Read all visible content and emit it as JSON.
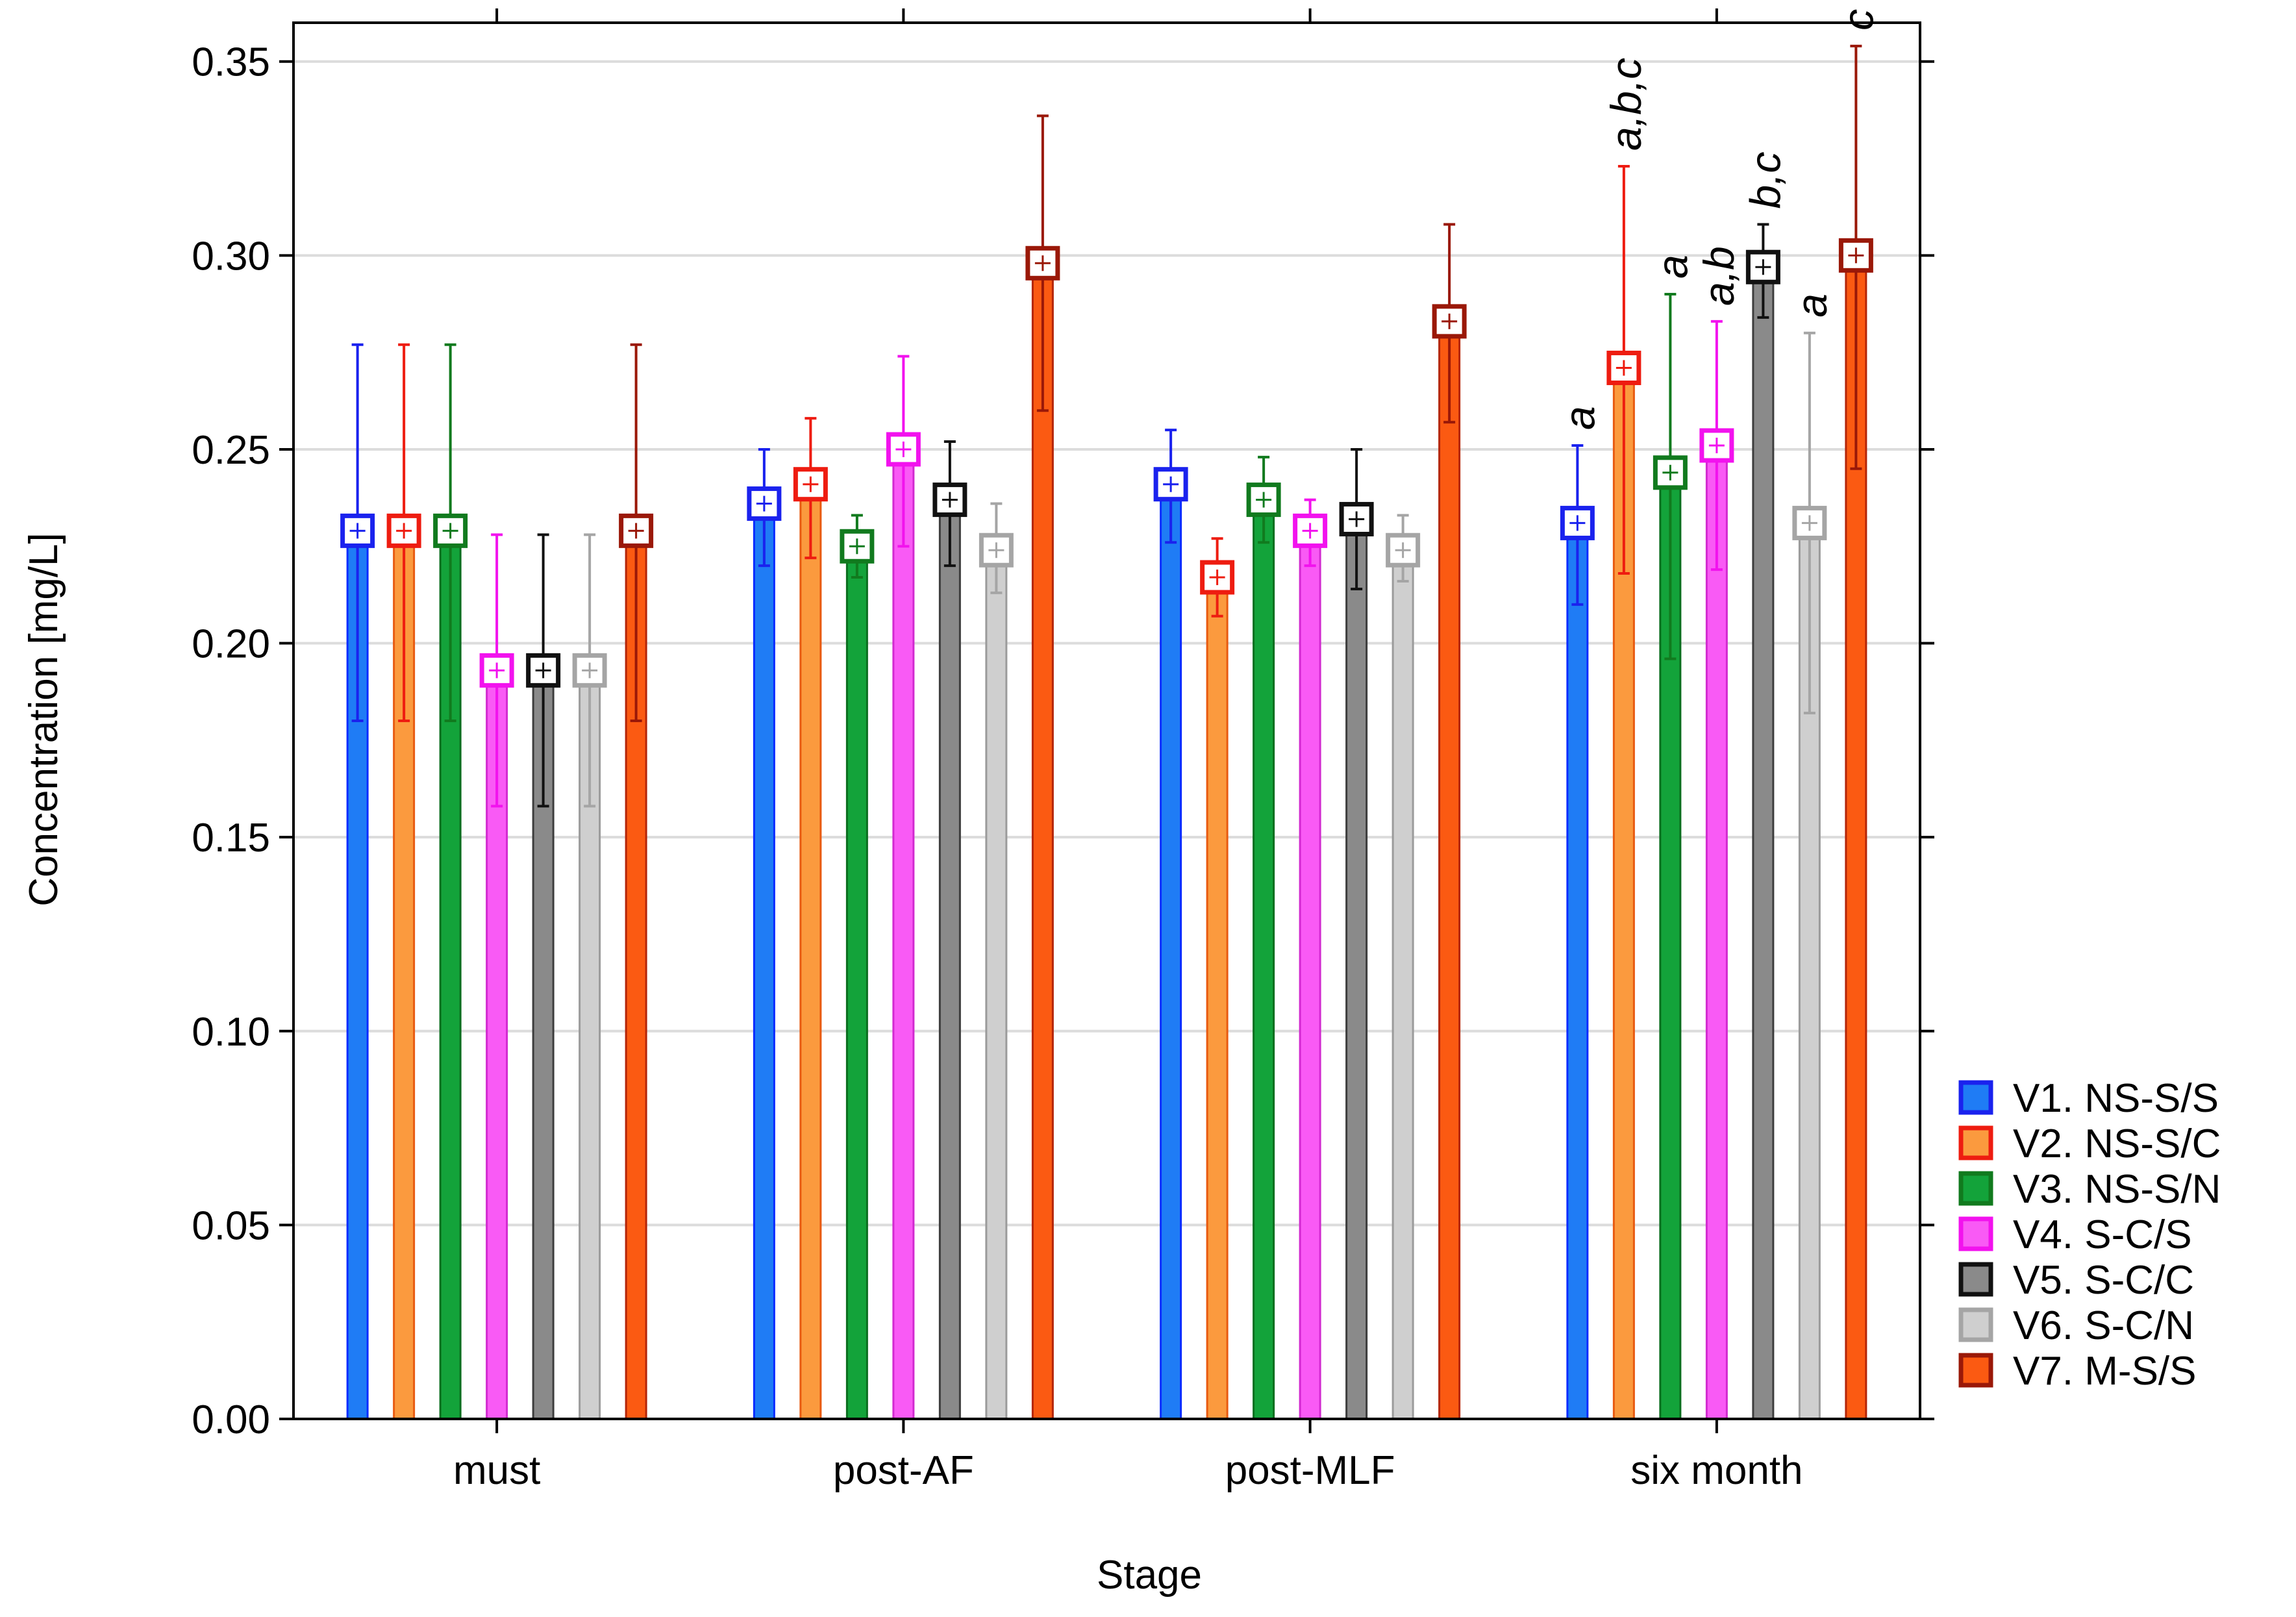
{
  "chart_data": {
    "type": "bar",
    "title": "",
    "xlabel": "Stage",
    "ylabel": "Concentration [mg/L]",
    "ylim": [
      0,
      0.36
    ],
    "yticks": [
      "0.00",
      "0.05",
      "0.10",
      "0.15",
      "0.20",
      "0.25",
      "0.30",
      "0.35"
    ],
    "grid": true,
    "legend_position": "bottom-right",
    "categories": [
      "must",
      "post-AF",
      "post-MLF",
      "six month"
    ],
    "series": [
      {
        "name": "V1. NS-S/S",
        "fill": "#1f7cf5",
        "edge": "#0a2bff",
        "marker": "#1a22ee",
        "values": [
          0.229,
          0.236,
          0.241,
          0.231
        ],
        "upper": [
          0.277,
          0.25,
          0.255,
          0.251
        ],
        "lower": [
          0.18,
          0.22,
          0.226,
          0.21
        ]
      },
      {
        "name": "V2. NS-S/C",
        "fill": "#fb9a3e",
        "edge": "#e85a10",
        "marker": "#ee1c10",
        "values": [
          0.229,
          0.241,
          0.217,
          0.271
        ],
        "upper": [
          0.277,
          0.258,
          0.227,
          0.323
        ],
        "lower": [
          0.18,
          0.222,
          0.207,
          0.218
        ]
      },
      {
        "name": "V3. NS-S/N",
        "fill": "#13a33a",
        "edge": "#0a6e1e",
        "marker": "#117a1e",
        "values": [
          0.229,
          0.225,
          0.237,
          0.244
        ],
        "upper": [
          0.277,
          0.233,
          0.248,
          0.29
        ],
        "lower": [
          0.18,
          0.217,
          0.226,
          0.196
        ]
      },
      {
        "name": "V4. S-C/S",
        "fill": "#f95af5",
        "edge": "#d22ad0",
        "marker": "#f212ee",
        "values": [
          0.193,
          0.25,
          0.229,
          0.251
        ],
        "upper": [
          0.228,
          0.274,
          0.237,
          0.283
        ],
        "lower": [
          0.158,
          0.225,
          0.22,
          0.219
        ]
      },
      {
        "name": "V5. S-C/C",
        "fill": "#8a8a8a",
        "edge": "#3d3d3d",
        "marker": "#111111",
        "values": [
          0.193,
          0.237,
          0.232,
          0.297
        ],
        "upper": [
          0.228,
          0.252,
          0.25,
          0.308
        ],
        "lower": [
          0.158,
          0.22,
          0.214,
          0.284
        ]
      },
      {
        "name": "V6. S-C/N",
        "fill": "#cfcfcf",
        "edge": "#9b9b9b",
        "marker": "#a5a5a5",
        "values": [
          0.193,
          0.224,
          0.224,
          0.231
        ],
        "upper": [
          0.228,
          0.236,
          0.233,
          0.28
        ],
        "lower": [
          0.158,
          0.213,
          0.216,
          0.182
        ]
      },
      {
        "name": "V7. M-S/S",
        "fill": "#fb5a12",
        "edge": "#b42508",
        "marker": "#9a1808",
        "values": [
          0.229,
          0.298,
          0.283,
          0.3
        ],
        "upper": [
          0.277,
          0.336,
          0.308,
          0.354
        ],
        "lower": [
          0.18,
          0.26,
          0.257,
          0.245
        ]
      }
    ],
    "annotations": [
      {
        "category": "six month",
        "series": "V1. NS-S/S",
        "text": "a"
      },
      {
        "category": "six month",
        "series": "V2. NS-S/C",
        "text": "a,b,c"
      },
      {
        "category": "six month",
        "series": "V3. NS-S/N",
        "text": "a"
      },
      {
        "category": "six month",
        "series": "V4. S-C/S",
        "text": "a,b"
      },
      {
        "category": "six month",
        "series": "V5. S-C/C",
        "text": "b,c"
      },
      {
        "category": "six month",
        "series": "V6. S-C/N",
        "text": "a"
      },
      {
        "category": "six month",
        "series": "V7. M-S/S",
        "text": "c"
      }
    ]
  }
}
